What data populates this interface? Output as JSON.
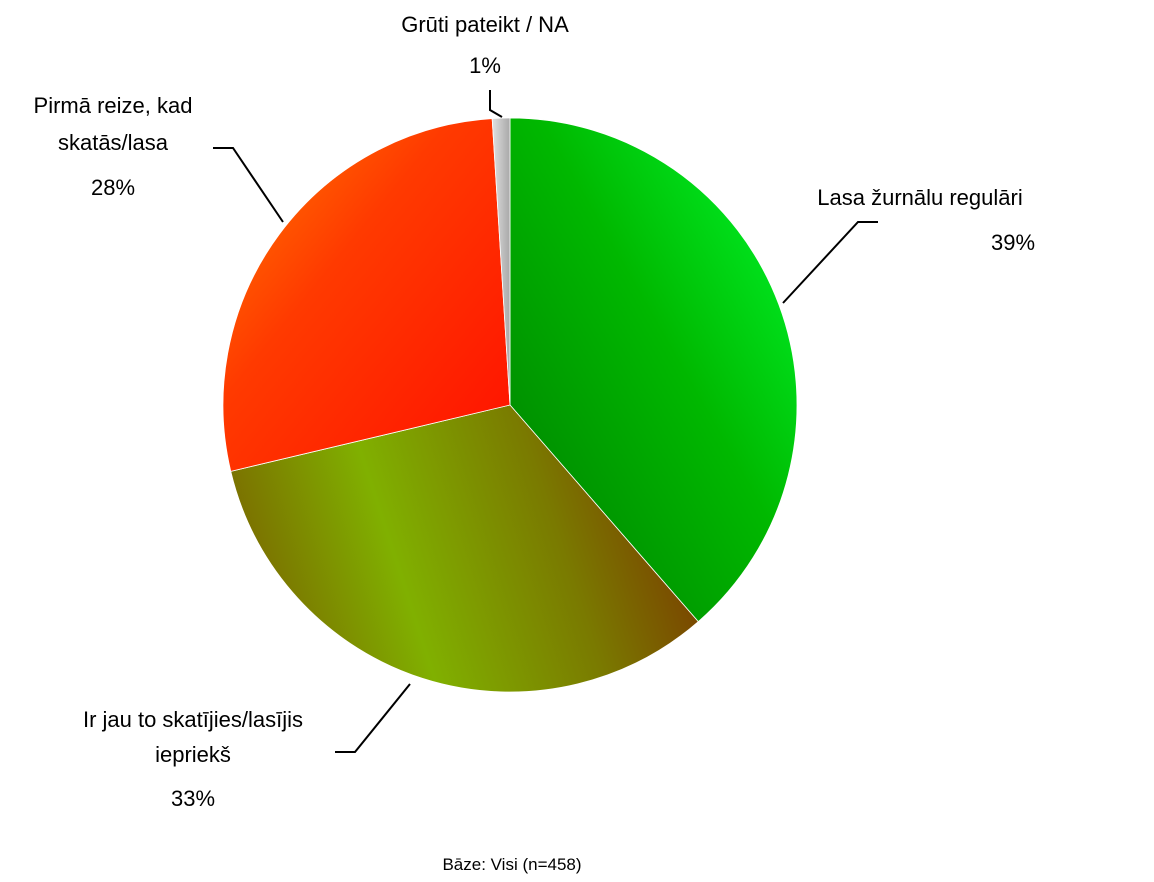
{
  "chart_data": {
    "type": "pie",
    "title": "",
    "slices": [
      {
        "label_lines": [
          "Lasa žurnālu regulāri"
        ],
        "value": 39,
        "value_label": "39%",
        "color": "#00b300"
      },
      {
        "label_lines": [
          "Ir jau to skatījies/lasījis",
          "iepriekš"
        ],
        "value": 33,
        "value_label": "33%",
        "color": "#7a8a00"
      },
      {
        "label_lines": [
          "Pirmā reize, kad",
          "skatās/lasa"
        ],
        "value": 28,
        "value_label": "28%",
        "color": "#ff3a00"
      },
      {
        "label_lines": [
          "Grūti pateikt / NA"
        ],
        "value": 1,
        "value_label": "1%",
        "color": "#c8c8c8"
      }
    ],
    "start_angle_deg": 0,
    "direction": "clockwise",
    "footnote": "Bāze: Visi (n=458)"
  }
}
